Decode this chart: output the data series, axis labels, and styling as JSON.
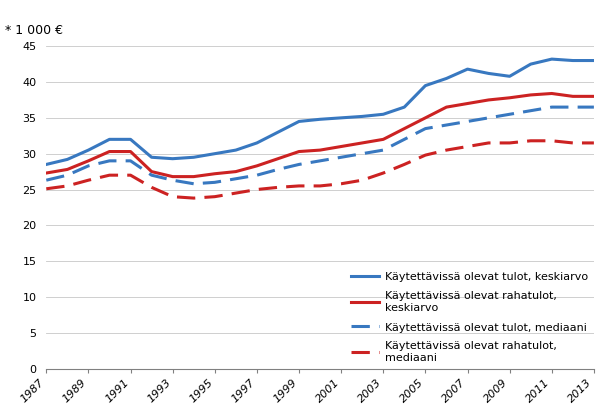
{
  "years": [
    1987,
    1988,
    1989,
    1990,
    1991,
    1992,
    1993,
    1994,
    1995,
    1996,
    1997,
    1998,
    1999,
    2000,
    2001,
    2002,
    2003,
    2004,
    2005,
    2006,
    2007,
    2008,
    2009,
    2010,
    2011,
    2012,
    2013
  ],
  "tulot_keskiarvo": [
    28.5,
    29.2,
    30.5,
    32.0,
    32.0,
    29.5,
    29.3,
    29.5,
    30.0,
    30.5,
    31.5,
    33.0,
    34.5,
    34.8,
    35.0,
    35.2,
    35.5,
    36.5,
    39.5,
    40.5,
    41.8,
    41.2,
    40.8,
    42.5,
    43.2,
    43.0,
    43.0
  ],
  "rahatulot_keskiarvo": [
    27.3,
    27.8,
    29.0,
    30.3,
    30.3,
    27.5,
    26.8,
    26.8,
    27.2,
    27.5,
    28.3,
    29.3,
    30.3,
    30.5,
    31.0,
    31.5,
    32.0,
    33.5,
    35.0,
    36.5,
    37.0,
    37.5,
    37.8,
    38.2,
    38.4,
    38.0,
    38.0
  ],
  "tulot_mediaani": [
    26.3,
    27.0,
    28.3,
    29.0,
    29.0,
    27.0,
    26.3,
    25.8,
    26.0,
    26.5,
    27.0,
    27.8,
    28.5,
    29.0,
    29.5,
    30.0,
    30.5,
    32.0,
    33.5,
    34.0,
    34.5,
    35.0,
    35.5,
    36.0,
    36.5,
    36.5,
    36.5
  ],
  "rahatulot_mediaani": [
    25.1,
    25.5,
    26.3,
    27.0,
    27.0,
    25.3,
    24.0,
    23.8,
    24.0,
    24.5,
    25.0,
    25.3,
    25.5,
    25.5,
    25.8,
    26.3,
    27.3,
    28.5,
    29.8,
    30.5,
    31.0,
    31.5,
    31.5,
    31.8,
    31.8,
    31.5,
    31.5
  ],
  "color_blue": "#3878C0",
  "color_red": "#CC2222",
  "ylabel": "* 1 000 €",
  "ylim": [
    0,
    45
  ],
  "yticks": [
    0,
    5,
    10,
    15,
    20,
    25,
    30,
    35,
    40,
    45
  ],
  "legend_labels": [
    "Käytettävissä olevat tulot, keskiarvo",
    "Käytettävissä olevat rahatulot,\nkeskiarvo",
    "Käytettävissä olevat tulot, mediaani",
    "Käytettävissä olevat rahatulot,\nmediaani"
  ],
  "xtick_labels": [
    "1987",
    "1989",
    "1991",
    "1993",
    "1995",
    "1997",
    "1999",
    "2001",
    "2003",
    "2005",
    "2007",
    "2009",
    "2011",
    "2013"
  ],
  "xtick_years": [
    1987,
    1989,
    1991,
    1993,
    1995,
    1997,
    1999,
    2001,
    2003,
    2005,
    2007,
    2009,
    2011,
    2013
  ]
}
